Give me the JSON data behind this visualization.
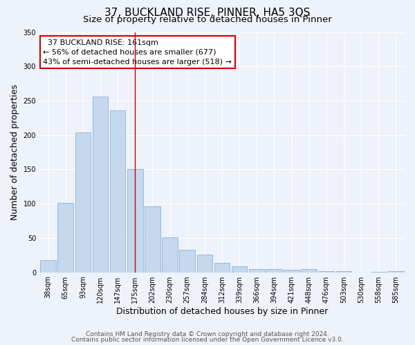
{
  "title": "37, BUCKLAND RISE, PINNER, HA5 3QS",
  "subtitle": "Size of property relative to detached houses in Pinner",
  "xlabel": "Distribution of detached houses by size in Pinner",
  "ylabel": "Number of detached properties",
  "bar_labels": [
    "38sqm",
    "65sqm",
    "93sqm",
    "120sqm",
    "147sqm",
    "175sqm",
    "202sqm",
    "230sqm",
    "257sqm",
    "284sqm",
    "312sqm",
    "339sqm",
    "366sqm",
    "394sqm",
    "421sqm",
    "448sqm",
    "476sqm",
    "503sqm",
    "530sqm",
    "558sqm",
    "585sqm"
  ],
  "bar_values": [
    18,
    101,
    204,
    256,
    236,
    150,
    96,
    51,
    33,
    26,
    14,
    9,
    5,
    5,
    4,
    5,
    2,
    2,
    0,
    1,
    2
  ],
  "bar_color": "#c5d8ee",
  "bar_edge_color": "#8ab4d4",
  "vline_x": 5,
  "vline_color": "#cc0000",
  "annotation_text": "  37 BUCKLAND RISE: 161sqm\n← 56% of detached houses are smaller (677)\n43% of semi-detached houses are larger (518) →",
  "annotation_box_color": "#ffffff",
  "annotation_box_edge": "#cc0000",
  "ylim": [
    0,
    350
  ],
  "yticks": [
    0,
    50,
    100,
    150,
    200,
    250,
    300,
    350
  ],
  "footer1": "Contains HM Land Registry data © Crown copyright and database right 2024.",
  "footer2": "Contains public sector information licensed under the Open Government Licence v3.0.",
  "bg_color": "#eef2fa",
  "grid_color": "#ffffff",
  "title_fontsize": 11,
  "subtitle_fontsize": 9.5,
  "ylabel_fontsize": 9,
  "xlabel_fontsize": 9,
  "tick_fontsize": 7,
  "annotation_fontsize": 8,
  "footer_fontsize": 6.5
}
